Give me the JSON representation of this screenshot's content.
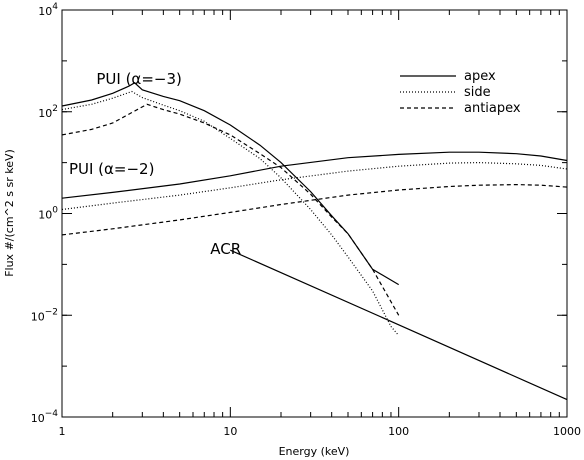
{
  "chart_data": {
    "type": "line",
    "xlabel": "Energy (keV)",
    "ylabel": "Flux #/(cm^2 s sr keV)",
    "x_scale": "log",
    "y_scale": "log",
    "xlim": [
      1,
      1000
    ],
    "ylim": [
      0.0001,
      10000
    ],
    "grid": false,
    "legend_position": "top-right",
    "x_ticks": [
      {
        "value": 1,
        "label": "1"
      },
      {
        "value": 10,
        "label": "10"
      },
      {
        "value": 100,
        "label": "100"
      },
      {
        "value": 1000,
        "label": "1000"
      }
    ],
    "y_ticks": [
      {
        "value": 0.0001,
        "base": "10",
        "exp": "−4"
      },
      {
        "value": 0.01,
        "base": "10",
        "exp": "−2"
      },
      {
        "value": 1,
        "base": "10",
        "exp": "0"
      },
      {
        "value": 100,
        "base": "10",
        "exp": "2"
      },
      {
        "value": 10000,
        "base": "10",
        "exp": "4"
      }
    ],
    "legend": [
      {
        "label": "apex",
        "dash": "solid"
      },
      {
        "label": "side",
        "dash": "dotted"
      },
      {
        "label": "antiapex",
        "dash": "dashed"
      }
    ],
    "annotations": [
      {
        "text": "PUI (α=−3)",
        "x": 1.6,
        "y": 350
      },
      {
        "text": "PUI (α=−2)",
        "x": 1.1,
        "y": 6
      },
      {
        "text": "ACR",
        "x": 7.6,
        "y": 0.16
      }
    ],
    "series": [
      {
        "name": "apex",
        "group": "PUI (α=−3)",
        "dash": "solid",
        "x": [
          1,
          1.5,
          2,
          2.5,
          2.7,
          3,
          4,
          5,
          7,
          10,
          15,
          20,
          30,
          40,
          50,
          70,
          100
        ],
        "y": [
          130,
          170,
          230,
          320,
          370,
          270,
          200,
          165,
          105,
          55,
          22,
          10,
          2.7,
          0.9,
          0.4,
          0.08,
          0.04
        ]
      },
      {
        "name": "side",
        "group": "PUI (α=−3)",
        "dash": "dotted",
        "x": [
          1,
          1.5,
          2,
          2.6,
          3,
          4,
          5,
          7,
          10,
          15,
          20,
          30,
          40,
          50,
          70,
          90,
          100
        ],
        "y": [
          110,
          140,
          185,
          250,
          190,
          135,
          105,
          65,
          30,
          12,
          5,
          1.2,
          0.38,
          0.14,
          0.03,
          0.006,
          0.004
        ]
      },
      {
        "name": "antiapex",
        "group": "PUI (α=−3)",
        "dash": "dashed",
        "x": [
          1,
          1.5,
          2,
          2.5,
          3.2,
          4,
          5,
          7,
          10,
          15,
          20,
          30,
          40,
          50,
          70,
          100
        ],
        "y": [
          35,
          45,
          60,
          90,
          140,
          110,
          90,
          60,
          35,
          15,
          8,
          2.4,
          0.85,
          0.4,
          0.08,
          0.01
        ]
      },
      {
        "name": "apex",
        "group": "PUI (α=−2)",
        "dash": "solid",
        "x": [
          1,
          2,
          5,
          10,
          20,
          50,
          100,
          200,
          300,
          500,
          700,
          1000
        ],
        "y": [
          2,
          2.6,
          3.8,
          5.5,
          8.5,
          12.5,
          14.5,
          16,
          16,
          15,
          13.5,
          11
        ]
      },
      {
        "name": "side",
        "group": "PUI (α=−2)",
        "dash": "dotted",
        "x": [
          1,
          2,
          5,
          10,
          20,
          50,
          100,
          200,
          300,
          500,
          700,
          1000
        ],
        "y": [
          1.2,
          1.6,
          2.3,
          3.2,
          4.6,
          6.8,
          8.5,
          9.8,
          10,
          9.5,
          8.8,
          7.5
        ]
      },
      {
        "name": "antiapex",
        "group": "PUI (α=−2)",
        "dash": "dashed",
        "x": [
          1,
          2,
          5,
          10,
          20,
          50,
          100,
          200,
          300,
          500,
          700,
          1000
        ],
        "y": [
          0.38,
          0.5,
          0.75,
          1.05,
          1.5,
          2.3,
          2.9,
          3.4,
          3.6,
          3.7,
          3.6,
          3.3
        ]
      },
      {
        "name": "ACR",
        "group": "ACR",
        "dash": "solid",
        "x": [
          10,
          100,
          1000
        ],
        "y": [
          0.19,
          0.0065,
          0.00022
        ]
      }
    ]
  }
}
